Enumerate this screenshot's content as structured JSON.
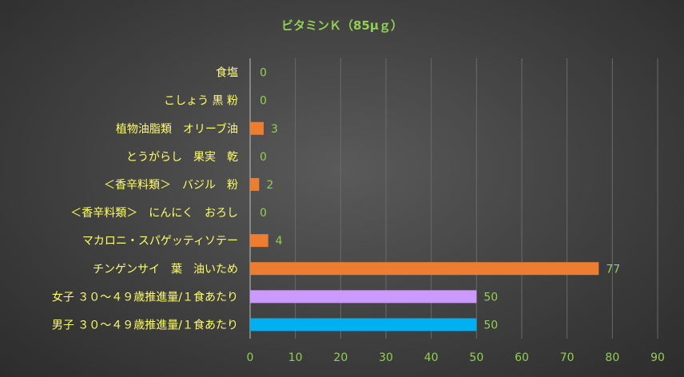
{
  "chart_data": {
    "type": "bar",
    "orientation": "horizontal",
    "title": "ビタミンＫ（85μｇ）",
    "categories": [
      "食塩",
      "こしょう 黒 粉",
      "植物油脂類　オリーブ油",
      "とうがらし　果実　乾",
      "＜香辛料類＞　バジル　粉",
      "＜香辛料類＞　にんにく　おろし",
      "マカロニ・スパゲッティソテー",
      "チンゲンサイ　葉　油いため",
      "女子 ３０～４９歳推進量/１食あたり",
      "男子 ３０～４９歳推進量/１食あたり"
    ],
    "values": [
      0,
      0,
      3,
      0,
      2,
      0,
      4,
      77,
      50,
      50
    ],
    "value_labels": [
      "0",
      "0",
      "3",
      "0",
      "2",
      "0",
      "4",
      "77",
      "50",
      "50"
    ],
    "bar_colors": [
      "#ed7d31",
      "#ed7d31",
      "#ed7d31",
      "#ed7d31",
      "#ed7d31",
      "#ed7d31",
      "#ed7d31",
      "#ed7d31",
      "#cc99ff",
      "#00b0f0"
    ],
    "xlim": [
      0,
      90
    ],
    "xticks": [
      "0",
      "10",
      "20",
      "30",
      "40",
      "50",
      "60",
      "70",
      "80",
      "90"
    ],
    "grid": true,
    "legend": "none"
  }
}
